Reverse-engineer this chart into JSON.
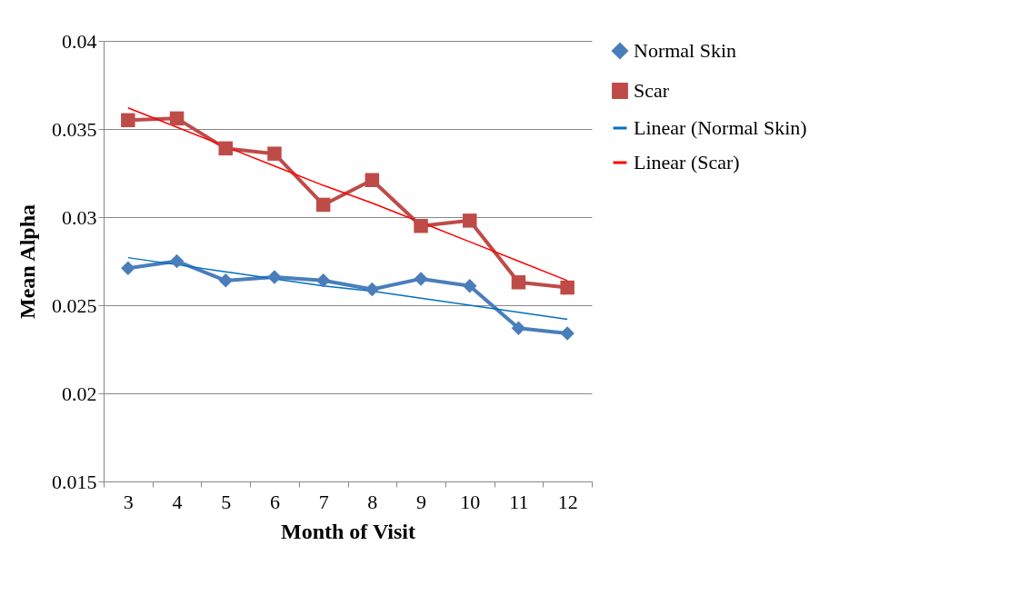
{
  "chart_data": {
    "type": "line",
    "xlabel": "Month of Visit",
    "ylabel": "Mean Alpha",
    "categories": [
      "3",
      "4",
      "5",
      "6",
      "7",
      "8",
      "9",
      "10",
      "11",
      "12"
    ],
    "series": [
      {
        "name": "Normal Skin",
        "color": "#4a7ebb",
        "marker": "diamond",
        "values": [
          0.0271,
          0.0275,
          0.0264,
          0.0266,
          0.0264,
          0.0259,
          0.0265,
          0.0261,
          0.0237,
          0.0234
        ]
      },
      {
        "name": "Scar",
        "color": "#be4b48",
        "marker": "square",
        "values": [
          0.0355,
          0.0356,
          0.0339,
          0.0336,
          0.0307,
          0.0321,
          0.0295,
          0.0298,
          0.0263,
          0.026
        ]
      },
      {
        "name": "Linear (Normal Skin)",
        "color": "#0070c0",
        "marker": "none",
        "values": [
          0.0277,
          0.0273,
          0.0269,
          0.0265,
          0.0261,
          0.0258,
          0.0254,
          0.025,
          0.0246,
          0.0242
        ]
      },
      {
        "name": "Linear (Scar)",
        "color": "#ff0000",
        "marker": "none",
        "values": [
          0.0362,
          0.0351,
          0.034,
          0.0329,
          0.0318,
          0.0308,
          0.0297,
          0.0286,
          0.0275,
          0.0264
        ]
      }
    ],
    "ylim": [
      0.015,
      0.04
    ],
    "yticks": [
      0.015,
      0.02,
      0.025,
      0.03,
      0.035,
      0.04
    ],
    "grid": "y",
    "legend": "right"
  }
}
